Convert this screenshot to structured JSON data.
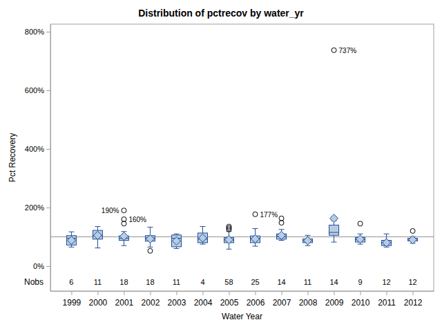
{
  "chart_data": {
    "type": "box",
    "title": "Distribution of pctrecov by water_yr",
    "xlabel": "Water Year",
    "ylabel": "Pct Recovery",
    "categories": [
      "1999",
      "2000",
      "2001",
      "2002",
      "2003",
      "2004",
      "2005",
      "2006",
      "2007",
      "2008",
      "2009",
      "2010",
      "2011",
      "2012"
    ],
    "boxes": [
      {
        "low": 65,
        "q1": 72,
        "median": 95,
        "q3": 104,
        "high": 117,
        "mean": 88,
        "outliers": []
      },
      {
        "low": 62,
        "q1": 92,
        "median": 103,
        "q3": 122,
        "high": 135,
        "mean": 105,
        "outliers": []
      },
      {
        "low": 70,
        "q1": 88,
        "median": 95,
        "q3": 103,
        "high": 118,
        "mean": 102,
        "outliers": [
          190,
          160,
          145
        ]
      },
      {
        "low": 65,
        "q1": 85,
        "median": 96,
        "q3": 104,
        "high": 133,
        "mean": 93,
        "outliers": [
          52
        ]
      },
      {
        "low": 60,
        "q1": 66,
        "median": 95,
        "q3": 106,
        "high": 110,
        "mean": 86,
        "outliers": []
      },
      {
        "low": 75,
        "q1": 80,
        "median": 92,
        "q3": 113,
        "high": 135,
        "mean": 96,
        "outliers": []
      },
      {
        "low": 58,
        "q1": 80,
        "median": 90,
        "q3": 97,
        "high": 118,
        "mean": 90,
        "outliers": [
          125,
          130,
          135
        ]
      },
      {
        "low": 68,
        "q1": 80,
        "median": 95,
        "q3": 103,
        "high": 128,
        "mean": 93,
        "outliers": [
          177
        ]
      },
      {
        "low": 88,
        "q1": 92,
        "median": 100,
        "q3": 110,
        "high": 125,
        "mean": 105,
        "outliers": [
          148,
          163
        ]
      },
      {
        "low": 70,
        "q1": 80,
        "median": 88,
        "q3": 93,
        "high": 105,
        "mean": 87,
        "outliers": []
      },
      {
        "low": 82,
        "q1": 105,
        "median": 115,
        "q3": 140,
        "high": 155,
        "mean": 163,
        "outliers": [
          737
        ]
      },
      {
        "low": 75,
        "q1": 82,
        "median": 90,
        "q3": 98,
        "high": 110,
        "mean": 92,
        "outliers": [
          145
        ]
      },
      {
        "low": 65,
        "q1": 70,
        "median": 80,
        "q3": 88,
        "high": 110,
        "mean": 80,
        "outliers": []
      },
      {
        "low": 78,
        "q1": 86,
        "median": 90,
        "q3": 95,
        "high": 100,
        "mean": 90,
        "outliers": [
          120
        ]
      }
    ],
    "nobs_label": "Nobs",
    "nobs": [
      6,
      11,
      18,
      18,
      11,
      4,
      58,
      25,
      14,
      11,
      14,
      9,
      12,
      12
    ],
    "annotations": [
      {
        "text": "190%",
        "x": "2001",
        "y": 190
      },
      {
        "text": "160%",
        "x": "2001",
        "y": 160
      },
      {
        "text": "177%",
        "x": "2006",
        "y": 177
      },
      {
        "text": "737%",
        "x": "2009",
        "y": 737
      }
    ],
    "reference_line": 100,
    "ylim": [
      -85,
      826
    ],
    "yticks": [
      {
        "value": 0,
        "label": "0%"
      },
      {
        "value": 200,
        "label": "200%"
      },
      {
        "value": 400,
        "label": "400%"
      },
      {
        "value": 600,
        "label": "600%"
      },
      {
        "value": 800,
        "label": "800%"
      }
    ],
    "color": "#b8cce4",
    "grid": false
  }
}
